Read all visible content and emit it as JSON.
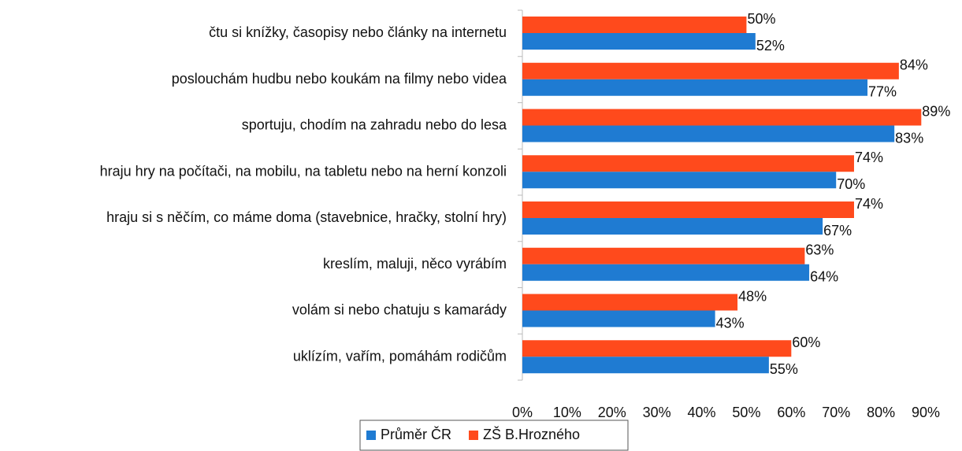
{
  "chart_data": {
    "type": "bar",
    "orientation": "horizontal",
    "categories": [
      "čtu si knížky, časopisy nebo články na internetu",
      "poslouchám hudbu nebo koukám na filmy nebo videa",
      "sportuju, chodím na zahradu nebo do lesa",
      "hraju hry na počítači, na mobilu, na tabletu nebo na herní konzoli",
      "hraju si s něčím, co máme doma (stavebnice, hračky, stolní hry)",
      "kreslím, maluji, něco vyrábím",
      "volám si nebo chatuju s kamarády",
      "uklízím, vařím, pomáhám rodičům"
    ],
    "series": [
      {
        "name": "Průměr ČR",
        "color": "#1f7bd2",
        "values": [
          52,
          77,
          83,
          70,
          67,
          64,
          43,
          55
        ],
        "value_labels": [
          "52%",
          "77%",
          "83%",
          "70%",
          "67%",
          "64%",
          "43%",
          "55%"
        ]
      },
      {
        "name": "ZŠ B.Hrozného",
        "color": "#ff4a1c",
        "values": [
          50,
          84,
          89,
          74,
          74,
          63,
          48,
          60
        ],
        "value_labels": [
          "50%",
          "84%",
          "89%",
          "74%",
          "74%",
          "63%",
          "48%",
          "60%"
        ]
      }
    ],
    "xlim": [
      0,
      90
    ],
    "xticks": [
      {
        "value": 0,
        "label": "0%"
      },
      {
        "value": 10,
        "label": "10%"
      },
      {
        "value": 20,
        "label": "20%"
      },
      {
        "value": 30,
        "label": "30%"
      },
      {
        "value": 40,
        "label": "40%"
      },
      {
        "value": 50,
        "label": "50%"
      },
      {
        "value": 60,
        "label": "60%"
      },
      {
        "value": 70,
        "label": "70%"
      },
      {
        "value": 80,
        "label": "80%"
      },
      {
        "value": 90,
        "label": "90%"
      }
    ],
    "grid": false,
    "legend": "bottom"
  }
}
